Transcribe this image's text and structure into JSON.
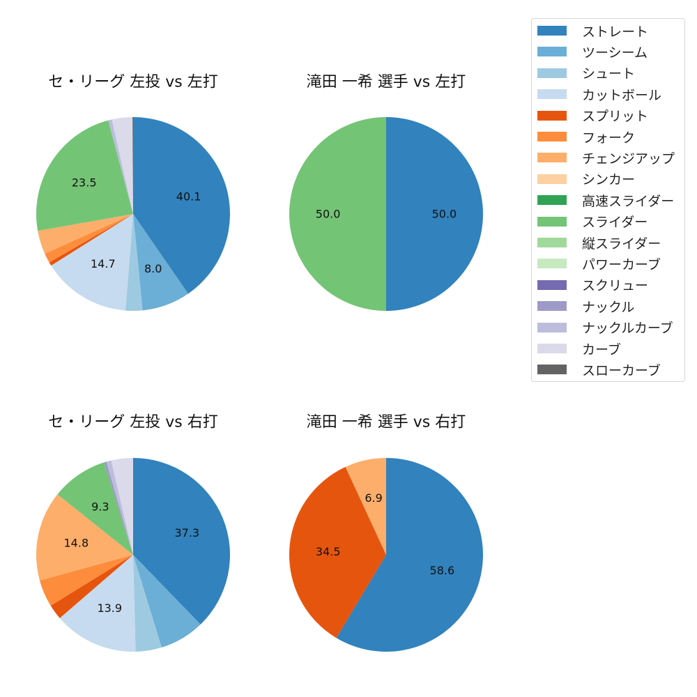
{
  "legend": [
    {
      "name": "ストレート",
      "color": "#3182bd"
    },
    {
      "name": "ツーシーム",
      "color": "#6baed6"
    },
    {
      "name": "シュート",
      "color": "#9ecae1"
    },
    {
      "name": "カットボール",
      "color": "#c6dbef"
    },
    {
      "name": "スプリット",
      "color": "#e6550d"
    },
    {
      "name": "フォーク",
      "color": "#fd8d3c"
    },
    {
      "name": "チェンジアップ",
      "color": "#fdae6b"
    },
    {
      "name": "シンカー",
      "color": "#fdd0a2"
    },
    {
      "name": "高速スライダー",
      "color": "#31a354"
    },
    {
      "name": "スライダー",
      "color": "#74c476"
    },
    {
      "name": "縦スライダー",
      "color": "#a1d99b"
    },
    {
      "name": "パワーカーブ",
      "color": "#c7e9c0"
    },
    {
      "name": "スクリュー",
      "color": "#756bb1"
    },
    {
      "name": "ナックル",
      "color": "#9e9ac8"
    },
    {
      "name": "ナックルカーブ",
      "color": "#bcbddc"
    },
    {
      "name": "カーブ",
      "color": "#dadaeb"
    },
    {
      "name": "スローカーブ",
      "color": "#636363"
    }
  ],
  "chart_data": [
    {
      "type": "pie",
      "title": "セ・リーグ 左投 vs 左打",
      "slices": [
        {
          "name": "ストレート",
          "value": 40.1,
          "label": "40.1"
        },
        {
          "name": "ツーシーム",
          "value": 8.0,
          "label": "8.0"
        },
        {
          "name": "シュート",
          "value": 2.8,
          "label": ""
        },
        {
          "name": "カットボール",
          "value": 14.7,
          "label": "14.7"
        },
        {
          "name": "スプリット",
          "value": 0.6,
          "label": ""
        },
        {
          "name": "フォーク",
          "value": 1.6,
          "label": ""
        },
        {
          "name": "チェンジアップ",
          "value": 3.9,
          "label": ""
        },
        {
          "name": "スライダー",
          "value": 23.5,
          "label": "23.5"
        },
        {
          "name": "ナックルカーブ",
          "value": 0.6,
          "label": ""
        },
        {
          "name": "カーブ",
          "value": 3.4,
          "label": ""
        },
        {
          "name": "スローカーブ",
          "value": 0.1,
          "label": ""
        }
      ]
    },
    {
      "type": "pie",
      "title": "滝田 一希 選手 vs 左打",
      "slices": [
        {
          "name": "ストレート",
          "value": 50.0,
          "label": "50.0"
        },
        {
          "name": "スライダー",
          "value": 50.0,
          "label": "50.0"
        }
      ]
    },
    {
      "type": "pie",
      "title": "セ・リーグ 左投 vs 右打",
      "slices": [
        {
          "name": "ストレート",
          "value": 37.3,
          "label": "37.3"
        },
        {
          "name": "ツーシーム",
          "value": 7.4,
          "label": ""
        },
        {
          "name": "シュート",
          "value": 4.3,
          "label": ""
        },
        {
          "name": "カットボール",
          "value": 13.9,
          "label": "13.9"
        },
        {
          "name": "スプリット",
          "value": 2.5,
          "label": ""
        },
        {
          "name": "フォーク",
          "value": 4.5,
          "label": ""
        },
        {
          "name": "チェンジアップ",
          "value": 14.8,
          "label": "14.8"
        },
        {
          "name": "スライダー",
          "value": 9.3,
          "label": "9.3"
        },
        {
          "name": "ナックル",
          "value": 0.4,
          "label": ""
        },
        {
          "name": "ナックルカーブ",
          "value": 0.8,
          "label": ""
        },
        {
          "name": "カーブ",
          "value": 3.6,
          "label": ""
        }
      ]
    },
    {
      "type": "pie",
      "title": "滝田 一希 選手 vs 右打",
      "slices": [
        {
          "name": "ストレート",
          "value": 58.6,
          "label": "58.6"
        },
        {
          "name": "スプリット",
          "value": 34.5,
          "label": "34.5"
        },
        {
          "name": "チェンジアップ",
          "value": 6.9,
          "label": "6.9"
        }
      ]
    }
  ]
}
